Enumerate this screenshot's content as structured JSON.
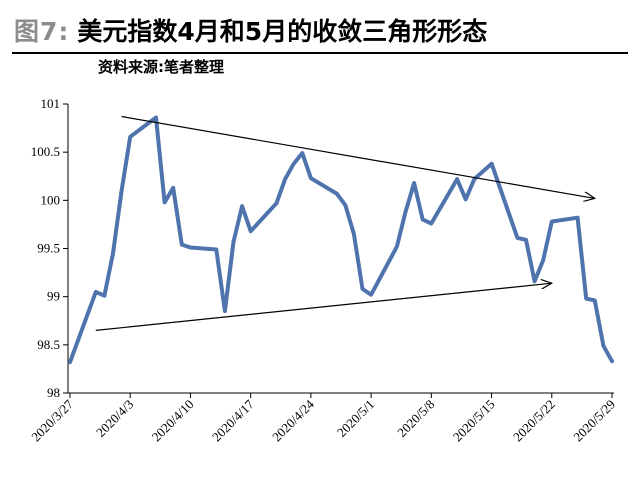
{
  "figure": {
    "label": "图7:",
    "title": "美元指数4月和5月的收敛三角形形态",
    "source": "资料来源:笔者整理"
  },
  "chart_data": {
    "type": "line",
    "title": "美元指数4月和5月的收敛三角形形态",
    "xlabel": "",
    "ylabel": "",
    "ylim": [
      98,
      101
    ],
    "yticks": [
      98,
      98.5,
      99,
      99.5,
      100,
      100.5,
      101
    ],
    "ytick_labels": [
      "98",
      "98.5",
      "99",
      "99.5",
      "100",
      "100.5",
      "101"
    ],
    "xticks": [
      "2020/3/27",
      "2020/4/3",
      "2020/4/10",
      "2020/4/17",
      "2020/4/24",
      "2020/5/1",
      "2020/5/8",
      "2020/5/15",
      "2020/5/22",
      "2020/5/29"
    ],
    "grid": false,
    "line_color": "#4f74ad",
    "series": [
      {
        "name": "",
        "x": [
          "2020/3/27",
          "2020/3/30",
          "2020/3/31",
          "2020/4/1",
          "2020/4/2",
          "2020/4/3",
          "2020/4/6",
          "2020/4/7",
          "2020/4/8",
          "2020/4/9",
          "2020/4/10",
          "2020/4/13",
          "2020/4/14",
          "2020/4/15",
          "2020/4/16",
          "2020/4/17",
          "2020/4/20",
          "2020/4/21",
          "2020/4/22",
          "2020/4/23",
          "2020/4/24",
          "2020/4/27",
          "2020/4/28",
          "2020/4/29",
          "2020/4/30",
          "2020/5/1",
          "2020/5/4",
          "2020/5/5",
          "2020/5/6",
          "2020/5/7",
          "2020/5/8",
          "2020/5/11",
          "2020/5/12",
          "2020/5/13",
          "2020/5/14",
          "2020/5/15",
          "2020/5/18",
          "2020/5/19",
          "2020/5/20",
          "2020/5/21",
          "2020/5/22",
          "2020/5/25",
          "2020/5/26",
          "2020/5/27",
          "2020/5/28",
          "2020/5/29"
        ],
        "values": [
          98.32,
          99.05,
          99.01,
          99.45,
          100.1,
          100.66,
          100.86,
          99.98,
          100.13,
          99.54,
          99.51,
          99.49,
          98.85,
          99.57,
          99.94,
          99.68,
          99.97,
          100.22,
          100.38,
          100.49,
          100.23,
          100.07,
          99.95,
          99.65,
          99.08,
          99.02,
          99.52,
          99.88,
          100.18,
          99.8,
          99.76,
          100.22,
          100.01,
          100.22,
          100.3,
          100.38,
          99.61,
          99.59,
          99.16,
          99.38,
          99.78,
          99.82,
          98.98,
          98.96,
          98.49,
          98.33
        ]
      }
    ],
    "annotations": [
      {
        "type": "arrow",
        "from": [
          "2020/4/2",
          100.87
        ],
        "to": [
          "2020/5/27",
          100.02
        ]
      },
      {
        "type": "arrow",
        "from": [
          "2020/3/30",
          98.65
        ],
        "to": [
          "2020/5/22",
          99.14
        ]
      }
    ]
  }
}
